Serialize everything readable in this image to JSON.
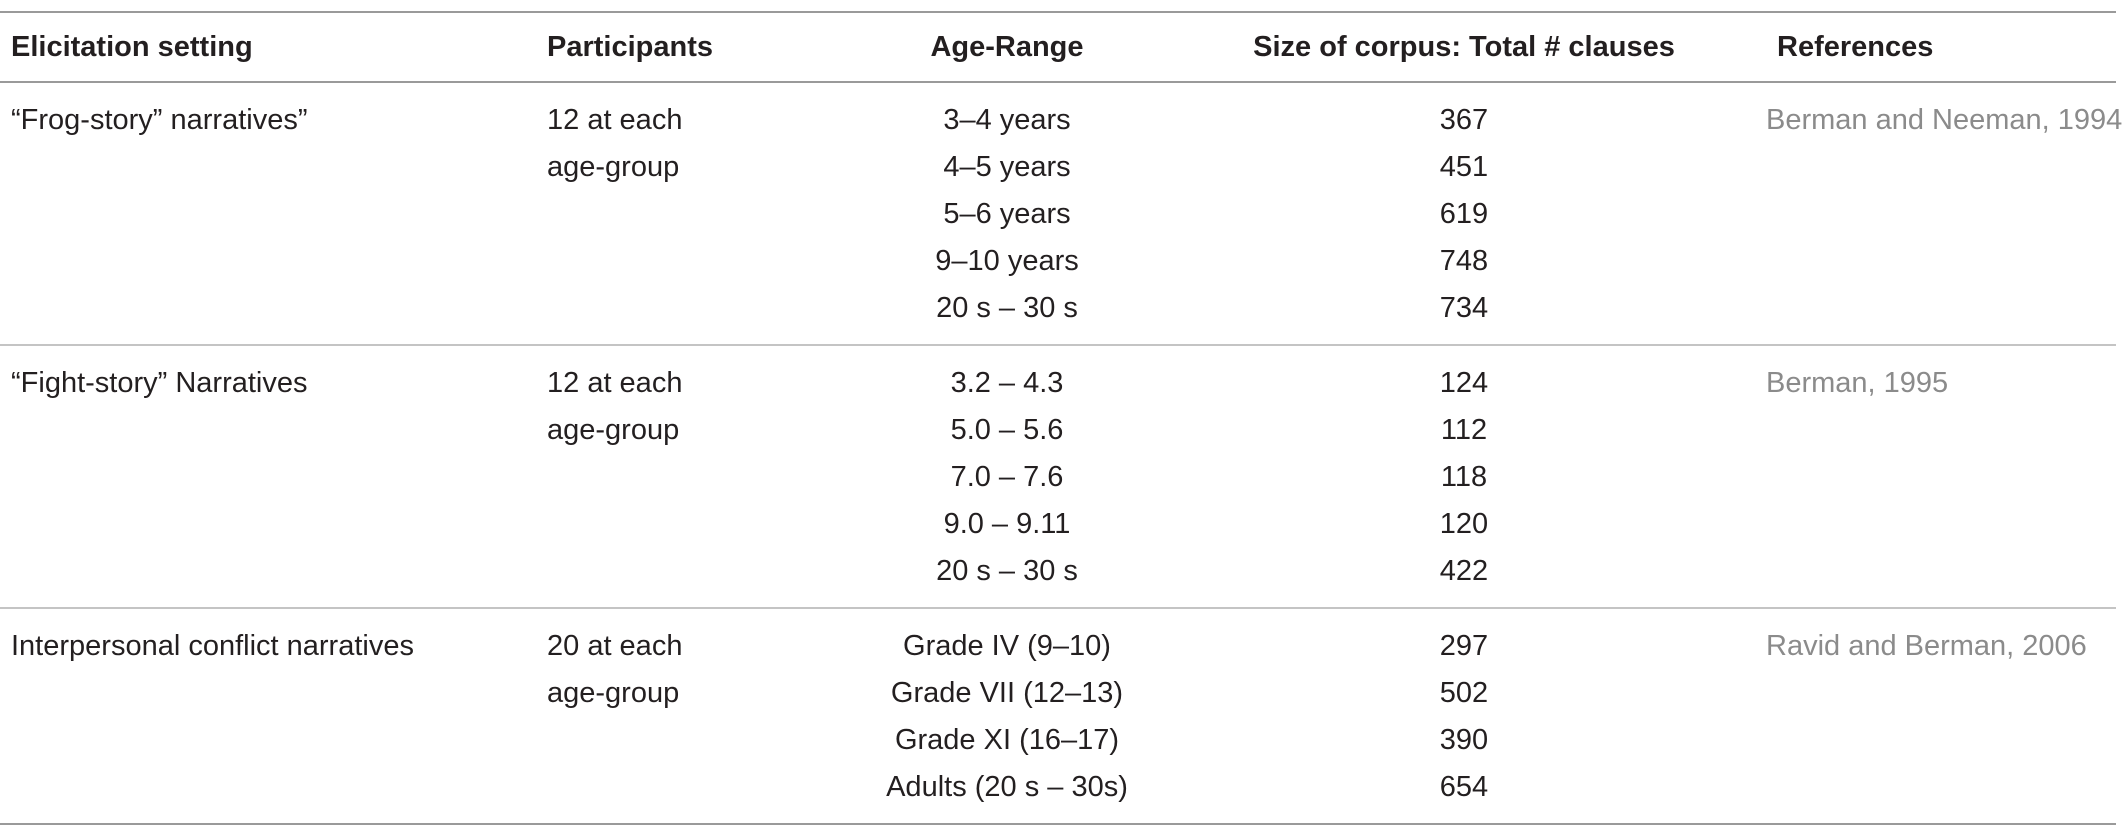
{
  "table": {
    "headers": [
      "Elicitation setting",
      "Participants",
      "Age-Range",
      "Size of corpus: Total # clauses",
      "References"
    ],
    "groups": [
      {
        "setting": "“Frog-story” narratives”",
        "participants_line1": "12 at each",
        "participants_line2": "age-group",
        "reference": "Berman and Neeman, 1994",
        "rows": [
          {
            "age_range": "3–4 years",
            "clauses": "367"
          },
          {
            "age_range": "4–5 years",
            "clauses": "451"
          },
          {
            "age_range": "5–6 years",
            "clauses": "619"
          },
          {
            "age_range": "9–10 years",
            "clauses": "748"
          },
          {
            "age_range": "20 s – 30 s",
            "clauses": "734"
          }
        ]
      },
      {
        "setting": "“Fight-story” Narratives",
        "participants_line1": "12 at each",
        "participants_line2": "age-group",
        "reference": "Berman, 1995",
        "rows": [
          {
            "age_range": "3.2 – 4.3",
            "clauses": "124"
          },
          {
            "age_range": "5.0 – 5.6",
            "clauses": "112"
          },
          {
            "age_range": "7.0 – 7.6",
            "clauses": "118"
          },
          {
            "age_range": "9.0 – 9.11",
            "clauses": "120"
          },
          {
            "age_range": "20 s – 30 s",
            "clauses": "422"
          }
        ]
      },
      {
        "setting": "Interpersonal conflict narratives",
        "participants_line1": "20 at each",
        "participants_line2": "age-group",
        "reference": "Ravid and Berman, 2006",
        "rows": [
          {
            "age_range": "Grade IV (9–10)",
            "clauses": "297"
          },
          {
            "age_range": "Grade VII (12–13)",
            "clauses": "502"
          },
          {
            "age_range": "Grade XI (16–17)",
            "clauses": "390"
          },
          {
            "age_range": "Adults (20 s – 30s)",
            "clauses": "654"
          }
        ]
      }
    ]
  }
}
